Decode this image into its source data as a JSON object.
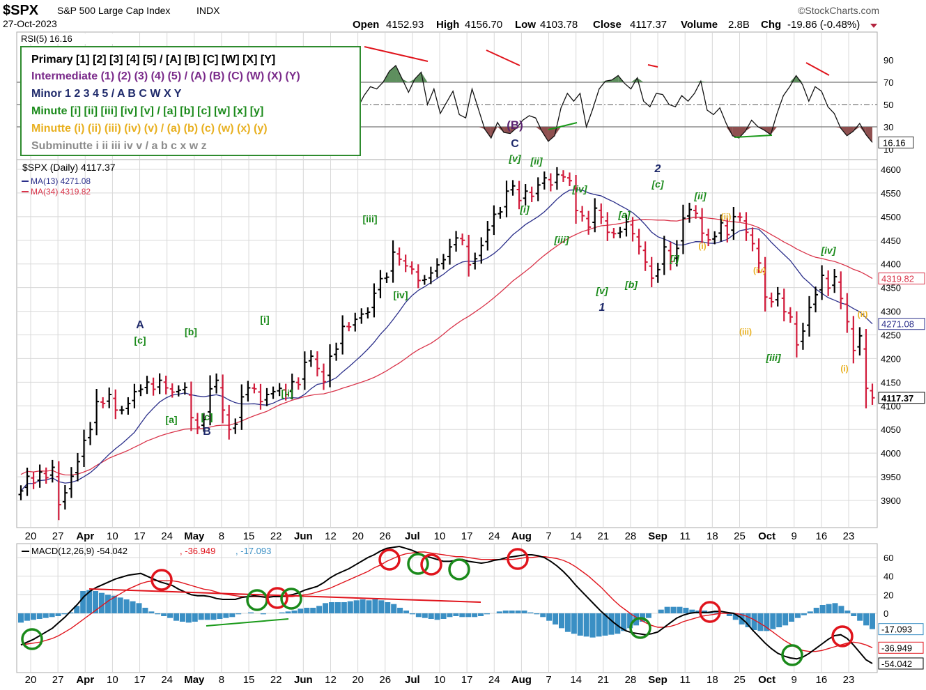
{
  "header": {
    "symbol": "$SPX",
    "name": "S&P 500 Large Cap Index",
    "exchange": "INDX",
    "date": "27-Oct-2023",
    "brand": "©StockCharts.com",
    "open_label": "Open",
    "open": "4152.93",
    "high_label": "High",
    "high": "4156.70",
    "low_label": "Low",
    "low": "4103.78",
    "close_label": "Close",
    "close": "4117.37",
    "volume_label": "Volume",
    "volume": "2.8B",
    "chg_label": "Chg",
    "chg": "-19.86 (-0.48%)"
  },
  "legend_box": {
    "lines": [
      {
        "text": "Primary [1] [2] [3] [4] [5] / [A] [B] [C] [W] [X] [Y]",
        "color": "#000000"
      },
      {
        "text": "Intermediate (1) (2) (3) (4) (5) / (A) (B) (C) (W) (X) (Y)",
        "color": "#7a2a8a"
      },
      {
        "text": "Minor 1 2 3 4 5 / A B C W X Y",
        "color": "#1f2a6b"
      },
      {
        "text": "Minute [i] [ii] [iii] [iv] [v] / [a] [b] [c] [w] [x] [y]",
        "color": "#1a8a1a"
      },
      {
        "text": "Minutte (i) (ii) (iii) (iv) (v) / (a) (b) (c) (w) (x) (y)",
        "color": "#e8b020"
      },
      {
        "text": "Subminutte i ii iii iv v / a b c x w z",
        "color": "#8c8c8c"
      }
    ]
  },
  "colors": {
    "up": "#000000",
    "down": "#d11a3a",
    "ma13": "#2b2f8a",
    "ma34": "#d9344a",
    "macd_hist": "#3a8fc4",
    "grid": "#d8d8d8",
    "rsi_fill_ob": "#5e8f5e",
    "rsi_fill_os": "#8f5050",
    "circle_red": "#e0141c",
    "circle_green": "#1a8a1a",
    "trend_red": "#e0141c",
    "trend_green": "#1a9a1a"
  },
  "chart_data": [
    {
      "id": "rsi",
      "type": "line",
      "title": "RSI(5) 16.16",
      "value_label": "16.16",
      "ylim": [
        0,
        100
      ],
      "levels": [
        70,
        50,
        30
      ],
      "y_ticks": [
        "90",
        "70",
        "50",
        "30",
        "10"
      ],
      "y_tick_values": [
        90,
        70,
        50,
        30,
        10
      ],
      "values": [
        62,
        56,
        48,
        52,
        44,
        58,
        50,
        61,
        55,
        66,
        71,
        60,
        57,
        66,
        54,
        63,
        58,
        49,
        55,
        63,
        46,
        52,
        60,
        48,
        57,
        45,
        52,
        61,
        54,
        50,
        58,
        48,
        57,
        64,
        55,
        52,
        60,
        56,
        49,
        55,
        62,
        51,
        57,
        63,
        68,
        74,
        83,
        70,
        78,
        61,
        68,
        76,
        53,
        47,
        58,
        66,
        64,
        70,
        80,
        85,
        73,
        61,
        73,
        79,
        50,
        64,
        42,
        52,
        62,
        41,
        38,
        64,
        46,
        28,
        20,
        34,
        25,
        24,
        29,
        36,
        40,
        38,
        26,
        17,
        22,
        47,
        60,
        53,
        60,
        30,
        46,
        64,
        71,
        72,
        76,
        69,
        64,
        74,
        53,
        48,
        60,
        59,
        50,
        48,
        58,
        53,
        60,
        71,
        45,
        41,
        47,
        33,
        22,
        20,
        26,
        36,
        30,
        27,
        23,
        42,
        58,
        66,
        76,
        68,
        53,
        66,
        62,
        48,
        42,
        29,
        22,
        26,
        33,
        23,
        16
      ]
    },
    {
      "id": "price",
      "type": "ohlc",
      "title": "$SPX (Daily) 4117.37",
      "series_names": [
        "MA(13) 4271.08",
        "MA(34) 4319.82"
      ],
      "ylim": [
        3840,
        4640
      ],
      "y_ticks": [
        "4600",
        "4550",
        "4500",
        "4450",
        "4400",
        "4350",
        "4300",
        "4250",
        "4200",
        "4150",
        "4100",
        "4050",
        "4000",
        "3950",
        "3900"
      ],
      "y_tick_values": [
        4600,
        4550,
        4500,
        4450,
        4400,
        4350,
        4300,
        4250,
        4200,
        4150,
        4100,
        4050,
        4000,
        3950,
        3900
      ],
      "last_labels": {
        "ma34": "4319.82",
        "ma13": "4271.08",
        "close": "4117.37"
      },
      "x_labels": [
        "20",
        "27",
        "Apr",
        "10",
        "17",
        "24",
        "May",
        "8",
        "15",
        "22",
        "Jun",
        "12",
        "20",
        "26",
        "Jul",
        "10",
        "17",
        "24",
        "Aug",
        "7",
        "14",
        "21",
        "28",
        "Sep",
        "11",
        "18",
        "25",
        "Oct",
        "9",
        "16",
        "23"
      ],
      "closes": [
        3920,
        3951,
        3937,
        3960,
        3948,
        3970,
        3891,
        3916,
        3951,
        3982,
        4027,
        4050,
        4109,
        4105,
        4124,
        4091,
        4091,
        4105,
        4130,
        4135,
        4150,
        4135,
        4154,
        4138,
        4129,
        4133,
        4139,
        4075,
        4055,
        4071,
        4136,
        4154,
        4091,
        4050,
        4061,
        4119,
        4138,
        4136,
        4109,
        4124,
        4130,
        4137,
        4124,
        4151,
        4145,
        4192,
        4205,
        4179,
        4151,
        4205,
        4220,
        4268,
        4267,
        4283,
        4294,
        4298,
        4338,
        4369,
        4372,
        4425,
        4410,
        4396,
        4389,
        4365,
        4367,
        4381,
        4398,
        4409,
        4436,
        4455,
        4450,
        4398,
        4411,
        4439,
        4472,
        4505,
        4510,
        4554,
        4565,
        4534,
        4554,
        4543,
        4567,
        4582,
        4567,
        4589,
        4584,
        4576,
        4513,
        4502,
        4478,
        4518,
        4499,
        4467,
        4464,
        4468,
        4489,
        4464,
        4437,
        4404,
        4370,
        4388,
        4436,
        4405,
        4433,
        4497,
        4515,
        4507,
        4465,
        4451,
        4458,
        4487,
        4462,
        4500,
        4499,
        4467,
        4443,
        4402,
        4330,
        4320,
        4337,
        4299,
        4288,
        4229,
        4258,
        4308,
        4335,
        4376,
        4349,
        4373,
        4327,
        4278,
        4217,
        4248,
        4137,
        4117
      ]
    },
    {
      "id": "macd",
      "type": "line",
      "title": "MACD(12,26,9) -54.042, -36.949, -17.093",
      "macd_label": "MACD(12,26,9) -54.042",
      "signal_label": "-36.949",
      "hist_label": "-17.093",
      "last_labels": {
        "hist": "-17.093",
        "signal": "-36.949",
        "macd": "-54.042"
      },
      "ylim": [
        -60,
        70
      ],
      "y_ticks": [
        "60",
        "40",
        "20",
        "0"
      ],
      "y_tick_values": [
        60,
        40,
        20,
        0
      ],
      "macd": [
        -34,
        -31,
        -28,
        -24,
        -20,
        -16,
        -10,
        -4,
        3,
        10,
        18,
        24,
        28,
        31,
        34,
        37,
        39,
        41,
        42,
        43,
        40,
        37,
        34,
        32,
        30,
        26,
        23,
        20,
        19,
        19,
        18,
        16,
        15,
        15,
        15,
        17,
        18,
        19,
        18,
        17,
        18,
        18,
        19,
        20,
        22,
        25,
        27,
        29,
        33,
        38,
        42,
        45,
        48,
        52,
        56,
        60,
        63,
        67,
        70,
        71,
        72,
        70,
        68,
        65,
        62,
        60,
        58,
        56,
        56,
        57,
        58,
        56,
        55,
        54,
        55,
        57,
        58,
        60,
        61,
        62,
        63,
        63,
        62,
        60,
        56,
        51,
        45,
        38,
        30,
        23,
        16,
        9,
        2,
        -4,
        -10,
        -15,
        -19,
        -21,
        -22,
        -23,
        -22,
        -20,
        -15,
        -10,
        -5,
        -2,
        0,
        1,
        1,
        1,
        2,
        2,
        1,
        0,
        -4,
        -10,
        -18,
        -25,
        -32,
        -38,
        -43,
        -46,
        -48,
        -49,
        -47,
        -43,
        -38,
        -33,
        -28,
        -24,
        -23,
        -27,
        -34,
        -42,
        -50,
        -54
      ],
      "signal": [
        -34,
        -33,
        -32,
        -31,
        -29,
        -27,
        -24,
        -20,
        -16,
        -11,
        -6,
        -1,
        4,
        9,
        14,
        18,
        22,
        26,
        29,
        32,
        34,
        35,
        35,
        35,
        35,
        34,
        32,
        30,
        28,
        26,
        25,
        23,
        21,
        20,
        19,
        18,
        18,
        18,
        18,
        18,
        18,
        18,
        18,
        18,
        19,
        20,
        21,
        23,
        25,
        27,
        30,
        33,
        36,
        39,
        42,
        45,
        49,
        52,
        56,
        59,
        62,
        64,
        65,
        66,
        66,
        65,
        64,
        63,
        62,
        61,
        61,
        60,
        59,
        58,
        58,
        58,
        58,
        58,
        58,
        59,
        60,
        60,
        61,
        61,
        60,
        59,
        57,
        54,
        50,
        45,
        40,
        34,
        28,
        21,
        14,
        8,
        3,
        -2,
        -6,
        -10,
        -13,
        -15,
        -15,
        -14,
        -12,
        -9,
        -7,
        -5,
        -3,
        -2,
        -1,
        0,
        0,
        0,
        -1,
        -3,
        -6,
        -10,
        -14,
        -19,
        -24,
        -29,
        -33,
        -37,
        -40,
        -41,
        -41,
        -40,
        -38,
        -36,
        -34,
        -32,
        -31,
        -32,
        -34,
        -37
      ],
      "hist": [
        -10,
        -8,
        -7,
        -6,
        -5,
        -4,
        -3,
        -1,
        1,
        8,
        24,
        25,
        24,
        22,
        20,
        19,
        17,
        15,
        13,
        11,
        6,
        2,
        -1,
        -3,
        -5,
        -8,
        -9,
        -10,
        -9,
        -7,
        -7,
        -7,
        -6,
        -5,
        -4,
        -1,
        0,
        1,
        0,
        -1,
        0,
        0,
        1,
        2,
        3,
        5,
        6,
        6,
        8,
        11,
        12,
        12,
        12,
        13,
        14,
        15,
        14,
        15,
        14,
        12,
        10,
        6,
        3,
        -1,
        -4,
        -5,
        -6,
        -7,
        -6,
        -4,
        -3,
        -4,
        -4,
        -4,
        -3,
        -1,
        0,
        2,
        3,
        3,
        3,
        3,
        1,
        -1,
        -4,
        -8,
        -12,
        -16,
        -20,
        -22,
        -24,
        -25,
        -26,
        -25,
        -24,
        -23,
        -22,
        -19,
        -16,
        -13,
        -9,
        -5,
        0,
        4,
        7,
        7,
        7,
        6,
        4,
        3,
        3,
        2,
        1,
        0,
        -3,
        -7,
        -12,
        -15,
        -18,
        -19,
        -19,
        -17,
        -15,
        -13,
        -9,
        -5,
        -2,
        2,
        6,
        9,
        10,
        11,
        8,
        3,
        -3,
        -8,
        -13,
        -17
      ]
    }
  ],
  "wave_labels": [
    {
      "text": "A",
      "color": "#1f2a6b"
    },
    {
      "text": "[c]",
      "color": "#1a8a1a"
    },
    {
      "text": "[b]",
      "color": "#1a8a1a"
    },
    {
      "text": "[a]",
      "color": "#1a8a1a"
    },
    {
      "text": "[c]",
      "color": "#1a8a1a"
    },
    {
      "text": "B",
      "color": "#1f2a6b"
    },
    {
      "text": "[i]",
      "color": "#1a8a1a"
    },
    {
      "text": "[ii]",
      "color": "#1a8a1a"
    },
    {
      "text": "[iii]",
      "color": "#1a8a1a"
    },
    {
      "text": "[iv]",
      "color": "#1a8a1a"
    },
    {
      "text": "(B)",
      "color": "#5a2370"
    },
    {
      "text": "C",
      "color": "#1f2a6b"
    },
    {
      "text": "[v]",
      "color": "#1a8a1a"
    },
    {
      "text": "[ii]",
      "color": "#1a8a1a"
    },
    {
      "text": "[i]",
      "color": "#1a8a1a"
    },
    {
      "text": "[iv]",
      "color": "#1a8a1a"
    },
    {
      "text": "[iii]",
      "color": "#1a8a1a"
    },
    {
      "text": "[v]",
      "color": "#1a8a1a"
    },
    {
      "text": "1",
      "color": "#1f2a6b"
    },
    {
      "text": "[a]",
      "color": "#1a8a1a"
    },
    {
      "text": "[b]",
      "color": "#1a8a1a"
    },
    {
      "text": "2",
      "color": "#1f2a6b"
    },
    {
      "text": "[c]",
      "color": "#1a8a1a"
    },
    {
      "text": "[i]",
      "color": "#1a8a1a"
    },
    {
      "text": "[ii]",
      "color": "#1a8a1a"
    },
    {
      "text": "(i)",
      "color": "#e8b020"
    },
    {
      "text": "(ii)",
      "color": "#e8b020"
    },
    {
      "text": "(iv)",
      "color": "#e8b020"
    },
    {
      "text": "(iii)",
      "color": "#e8b020"
    },
    {
      "text": "[iii]",
      "color": "#1a8a1a"
    },
    {
      "text": "[iv]",
      "color": "#1a8a1a"
    },
    {
      "text": "(ii)",
      "color": "#e8b020"
    },
    {
      "text": "(i)",
      "color": "#e8b020"
    }
  ]
}
